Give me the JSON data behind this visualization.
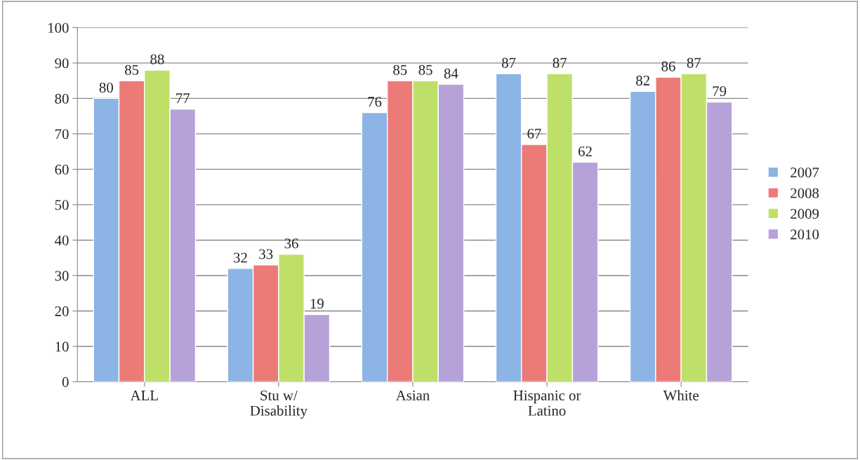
{
  "chart_data": {
    "type": "bar",
    "categories": [
      "ALL",
      "Stu w/\nDisability",
      "Asian",
      "Hispanic or\nLatino",
      "White"
    ],
    "series": [
      {
        "name": "2007",
        "color": "#8cb4e4",
        "values": [
          80,
          32,
          76,
          87,
          82
        ]
      },
      {
        "name": "2008",
        "color": "#ec7b78",
        "values": [
          85,
          33,
          85,
          67,
          86
        ]
      },
      {
        "name": "2009",
        "color": "#bfe068",
        "values": [
          88,
          36,
          85,
          87,
          87
        ]
      },
      {
        "name": "2010",
        "color": "#b6a2d8",
        "values": [
          77,
          19,
          84,
          62,
          79
        ]
      }
    ],
    "ylim": [
      0,
      100
    ],
    "yticks": [
      0,
      10,
      20,
      30,
      40,
      50,
      60,
      70,
      80,
      90,
      100
    ],
    "grid": "y",
    "legend": "right",
    "data_labels": true
  }
}
